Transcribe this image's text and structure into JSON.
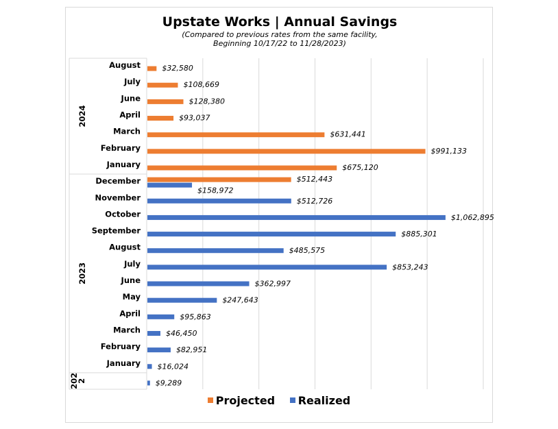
{
  "chart_data": {
    "type": "bar",
    "orientation": "horizontal",
    "title": "Upstate Works | Annual Savings",
    "subtitle": [
      "(Compared to previous rates from the same facility,",
      "Beginning 10/17/22 to 11/28/2023)"
    ],
    "xlabel": "",
    "ylabel": "",
    "xlim": [
      0,
      1200000
    ],
    "x_gridline_step": 200000,
    "x_tick_labels_shown": false,
    "grid": true,
    "legend_position": "bottom",
    "series": [
      {
        "name": "Projected",
        "color": "#ED7D31"
      },
      {
        "name": "Realized",
        "color": "#4472C4"
      }
    ],
    "groups": [
      {
        "label": "2024",
        "rows": [
          {
            "month": "August",
            "projected": 32580,
            "projected_label": "$32,580"
          },
          {
            "month": "July",
            "projected": 108669,
            "projected_label": "$108,669"
          },
          {
            "month": "June",
            "projected": 128380,
            "projected_label": "$128,380"
          },
          {
            "month": "April",
            "projected": 93037,
            "projected_label": "$93,037"
          },
          {
            "month": "March",
            "projected": 631441,
            "projected_label": "$631,441"
          },
          {
            "month": "February",
            "projected": 991133,
            "projected_label": "$991,133"
          },
          {
            "month": "January",
            "projected": 675120,
            "projected_label": "$675,120"
          }
        ]
      },
      {
        "label": "2023",
        "rows": [
          {
            "month": "December",
            "projected": 512443,
            "projected_label": "$512,443",
            "realized": 158972,
            "realized_label": "$158,972"
          },
          {
            "month": "November",
            "realized": 512726,
            "realized_label": "$512,726"
          },
          {
            "month": "October",
            "realized": 1062895,
            "realized_label": "$1,062,895"
          },
          {
            "month": "September",
            "realized": 885301,
            "realized_label": "$885,301"
          },
          {
            "month": "August",
            "realized": 485575,
            "realized_label": "$485,575"
          },
          {
            "month": "July",
            "realized": 853243,
            "realized_label": "$853,243"
          },
          {
            "month": "June",
            "realized": 362997,
            "realized_label": "$362,997"
          },
          {
            "month": "May",
            "realized": 247643,
            "realized_label": "$247,643"
          },
          {
            "month": "April",
            "realized": 95863,
            "realized_label": "$95,863"
          },
          {
            "month": "March",
            "realized": 46450,
            "realized_label": "$46,450"
          },
          {
            "month": "February",
            "realized": 82951,
            "realized_label": "$82,951"
          },
          {
            "month": "January",
            "realized": 16024,
            "realized_label": "$16,024"
          }
        ]
      },
      {
        "label": "2022",
        "label_display": [
          "202",
          "2"
        ],
        "rows": [
          {
            "month": "",
            "realized": 9289,
            "realized_label": "$9,289"
          }
        ]
      }
    ]
  },
  "legend": {
    "projected_label": "Projected",
    "realized_label": "Realized",
    "projected_color": "#ED7D31",
    "realized_color": "#4472C4"
  }
}
